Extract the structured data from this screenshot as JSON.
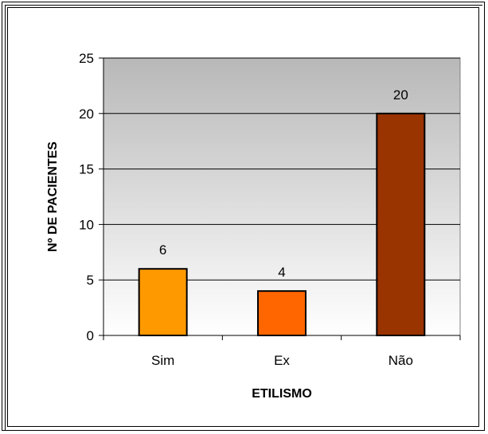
{
  "chart_data": {
    "type": "bar",
    "categories": [
      "Sim",
      "Ex",
      "Não"
    ],
    "values": [
      6,
      4,
      20
    ],
    "data_labels": [
      "6",
      "4",
      "20"
    ],
    "xlabel": "ETILISMO",
    "ylabel": "Nº DE PACIENTES",
    "ylim": [
      0,
      25
    ],
    "yticks": [
      "0",
      "5",
      "10",
      "15",
      "20",
      "25"
    ],
    "grid": true,
    "legend": "none",
    "colors": [
      "#FF9900",
      "#FF6600",
      "#993300"
    ],
    "plot_background": "gradient-gray-to-white"
  }
}
